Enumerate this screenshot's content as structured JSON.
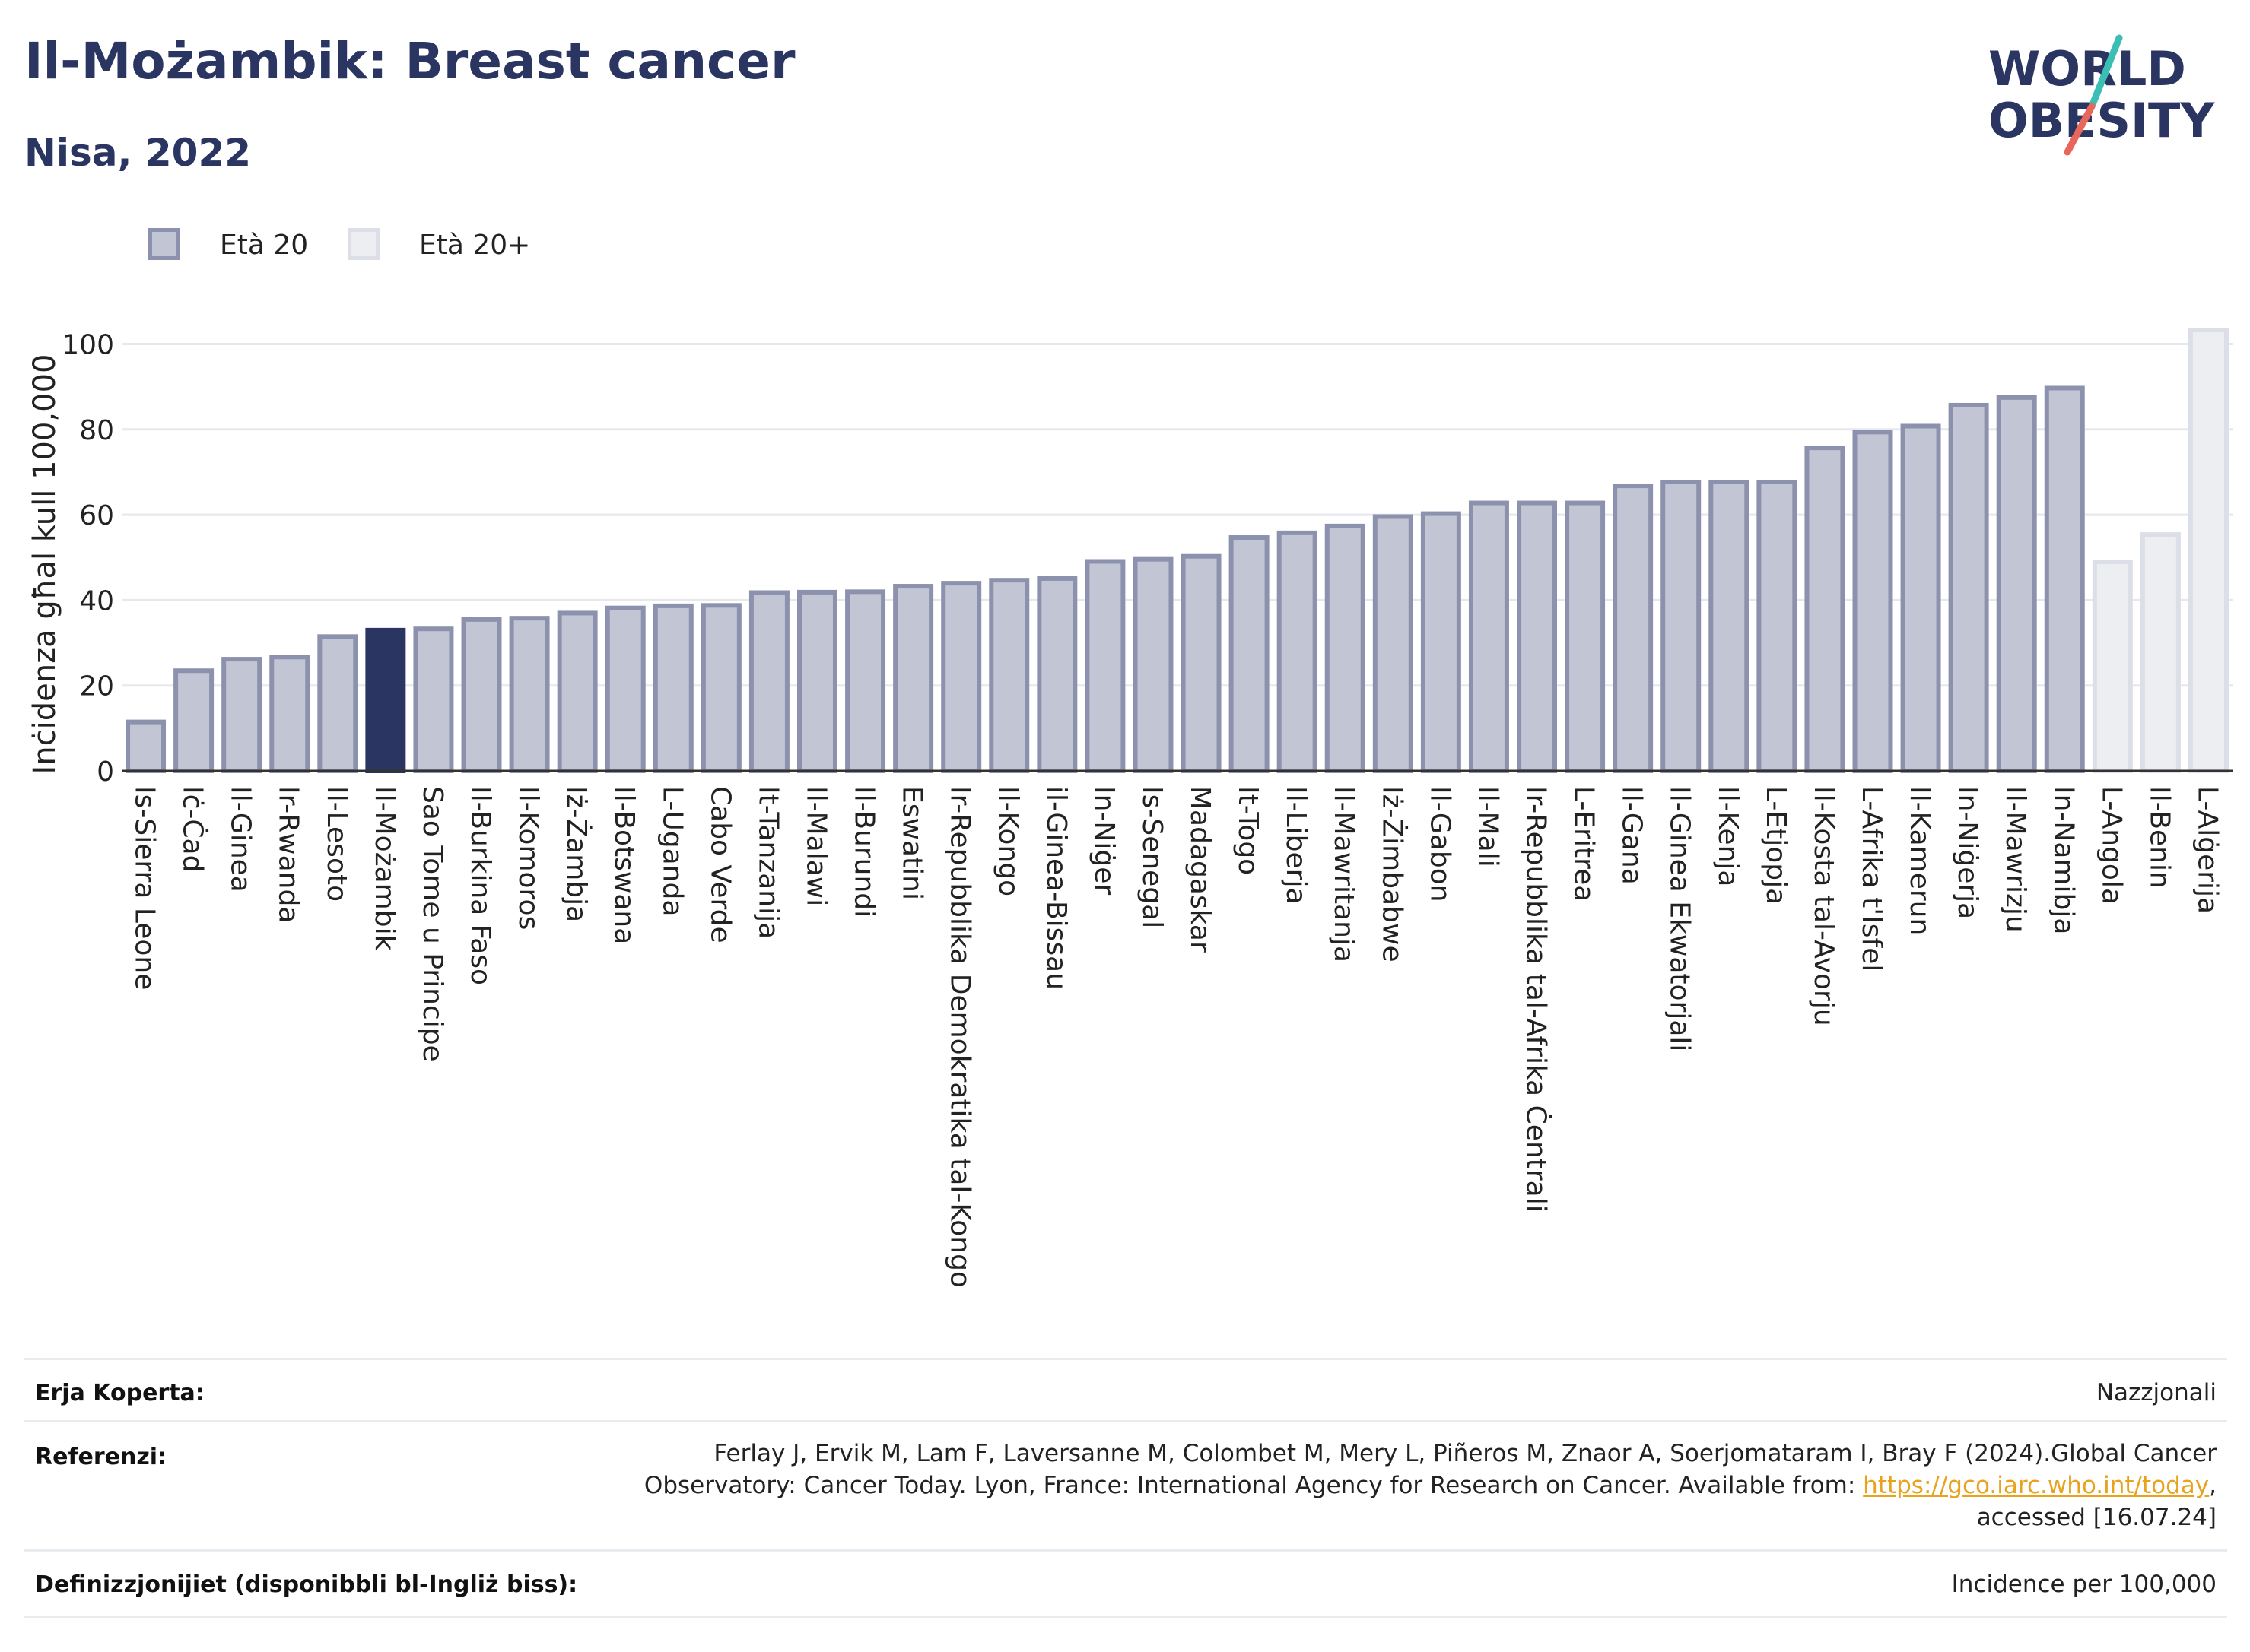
{
  "header": {
    "title": "Il-Możambik: Breast cancer",
    "subtitle": "Nisa, 2022"
  },
  "logo": {
    "line1": "WORLD",
    "line2": "OBESITY",
    "colors": {
      "text": "#2a3561",
      "slash_top": "#3bbfb4",
      "slash_bottom": "#e8665a"
    }
  },
  "legend": {
    "items": [
      {
        "label": "Età 20",
        "color": "#c2c5d3",
        "border": "#8c92ad"
      },
      {
        "label": "Età 20+",
        "color": "#eceef2",
        "border": "#dcdfe7"
      }
    ]
  },
  "chart_data": {
    "type": "bar",
    "ylabel": "Inċidenza għal kull 100,000",
    "ylim": [
      0,
      104
    ],
    "yticks": [
      0,
      20,
      40,
      60,
      80,
      100
    ],
    "grid": true,
    "categories": [
      "Is-Sierra Leone",
      "Iċ-Ċad",
      "Il-Ginea",
      "Ir-Rwanda",
      "Il-Lesoto",
      "Il-Możambik",
      "Sao Tome u Principe",
      "Il-Burkina Faso",
      "Il-Komoros",
      "Iż-Żambja",
      "Il-Botswana",
      "L-Uganda",
      "Cabo Verde",
      "It-Tanzanija",
      "Il-Malawi",
      "Il-Burundi",
      "Eswatini",
      "Ir-Repubblika Demokratika tal-Kongo",
      "Il-Kongo",
      "il-Ginea-Bissau",
      "In-Niġer",
      "Is-Senegal",
      "Madagaskar",
      "It-Togo",
      "Il-Liberja",
      "Il-Mawritanja",
      "Iż-Żimbabwe",
      "Il-Gabon",
      "Il-Mali",
      "Ir-Repubblika tal-Afrika Ċentrali",
      "L-Eritrea",
      "Il-Gana",
      "Il-Ginea Ekwatorjali",
      "Il-Kenja",
      "L-Etjopja",
      "Il-Kosta tal-Avorju",
      "L-Afrika t'Isfel",
      "Il-Kamerun",
      "In-Niġerja",
      "Il-Mawrizju",
      "In-Namibja",
      "L-Angola",
      "Il-Benin",
      "L-Alġerija"
    ],
    "values": [
      12,
      24,
      26.7,
      27.2,
      32,
      33.5,
      33.8,
      36,
      36.3,
      37.5,
      38.7,
      39.2,
      39.3,
      42.3,
      42.4,
      42.5,
      43.8,
      44.5,
      45.2,
      45.6,
      49.6,
      50.1,
      50.8,
      55.2,
      56.3,
      57.9,
      60.1,
      60.8,
      63.3,
      63.3,
      63.3,
      67.3,
      68.2,
      68.2,
      68.2,
      76.2,
      79.9,
      81.3,
      86.2,
      88,
      90.2,
      49.5,
      55.9,
      103.8
    ],
    "series_index": [
      0,
      0,
      0,
      0,
      0,
      0,
      0,
      0,
      0,
      0,
      0,
      0,
      0,
      0,
      0,
      0,
      0,
      0,
      0,
      0,
      0,
      0,
      0,
      0,
      0,
      0,
      0,
      0,
      0,
      0,
      0,
      0,
      0,
      0,
      0,
      0,
      0,
      0,
      0,
      0,
      0,
      1,
      1,
      1
    ],
    "highlight": "Il-Możambik",
    "colors": {
      "series0": "#c2c5d3",
      "series0_border": "#8c92ad",
      "series1": "#eceef2",
      "series1_border": "#dcdfe7",
      "highlight": "#2a3561"
    }
  },
  "meta": {
    "coverage_label": "Erja Koperta:",
    "coverage_value": "Nazzjonali",
    "references_label": "Referenzi:",
    "references_line1": "Ferlay J, Ervik M, Lam F, Laversanne M, Colombet M, Mery L, Piñeros M, Znaor A, Soerjomataram I, Bray F (2024).Global Cancer",
    "references_line2_pre": "Observatory: Cancer Today. Lyon, France: International Agency for Research on Cancer. Available from: ",
    "references_link": "https://gco.iarc.who.int/today",
    "references_line2_post": ",",
    "references_line3": "accessed [16.07.24]",
    "definitions_label": "Definizzjonijiet (disponibbli bl-Ingliż biss):",
    "definitions_value": "Incidence per 100,000"
  }
}
